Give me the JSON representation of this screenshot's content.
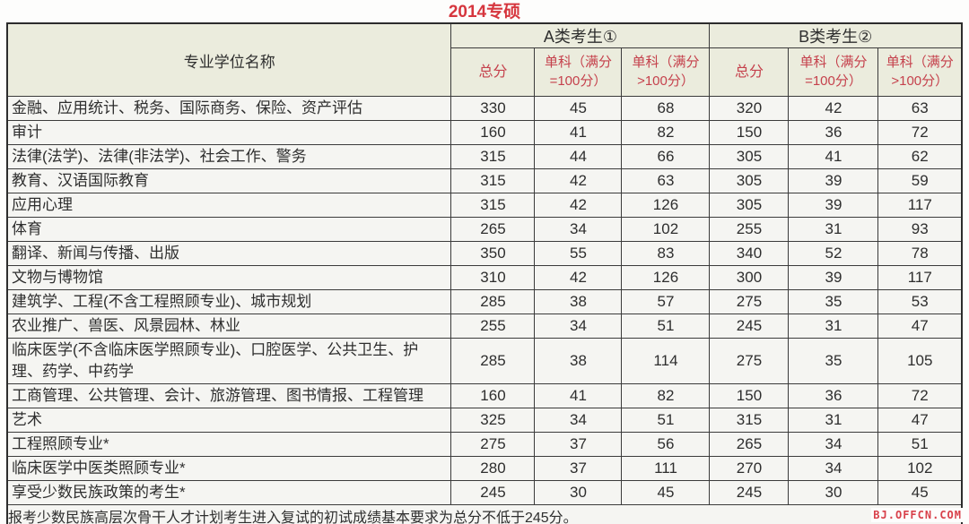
{
  "title": "2014专硕",
  "watermark": "BJ.OFFCN.COM",
  "colors": {
    "title_red": "#d6363e",
    "header_red": "#c5414c",
    "header_bg": "#ebecdd",
    "cell_bg": "#f5f5f2",
    "border": "#3b3b3b",
    "text": "#2e2e2e",
    "watermark_red": "#d8404a"
  },
  "table": {
    "col1_header": "专业学位名称",
    "group_a": "A类考生①",
    "group_b": "B类考生②",
    "sub_headers": [
      "总分",
      "单科（满分=100分）",
      "单科（满分>100分）"
    ],
    "rows": [
      {
        "name": "金融、应用统计、税务、国际商务、保险、资产评估",
        "a": [
          330,
          45,
          68
        ],
        "b": [
          320,
          42,
          63
        ]
      },
      {
        "name": "审计",
        "a": [
          160,
          41,
          82
        ],
        "b": [
          150,
          36,
          72
        ]
      },
      {
        "name": "法律(法学)、法律(非法学)、社会工作、警务",
        "a": [
          315,
          44,
          66
        ],
        "b": [
          305,
          41,
          62
        ]
      },
      {
        "name": "教育、汉语国际教育",
        "a": [
          315,
          42,
          63
        ],
        "b": [
          305,
          39,
          59
        ]
      },
      {
        "name": "应用心理",
        "a": [
          315,
          42,
          126
        ],
        "b": [
          305,
          39,
          117
        ]
      },
      {
        "name": "体育",
        "a": [
          265,
          34,
          102
        ],
        "b": [
          255,
          31,
          93
        ]
      },
      {
        "name": "翻译、新闻与传播、出版",
        "a": [
          350,
          55,
          83
        ],
        "b": [
          340,
          52,
          78
        ]
      },
      {
        "name": "文物与博物馆",
        "a": [
          310,
          42,
          126
        ],
        "b": [
          300,
          39,
          117
        ]
      },
      {
        "name": "建筑学、工程(不含工程照顾专业)、城市规划",
        "a": [
          285,
          38,
          57
        ],
        "b": [
          275,
          35,
          53
        ]
      },
      {
        "name": "农业推广、兽医、风景园林、林业",
        "a": [
          255,
          34,
          51
        ],
        "b": [
          245,
          31,
          47
        ]
      },
      {
        "name": "临床医学(不含临床医学照顾专业)、口腔医学、公共卫生、护理、药学、中药学",
        "a": [
          285,
          38,
          114
        ],
        "b": [
          275,
          35,
          105
        ]
      },
      {
        "name": "工商管理、公共管理、会计、旅游管理、图书情报、工程管理",
        "a": [
          160,
          41,
          82
        ],
        "b": [
          150,
          36,
          72
        ]
      },
      {
        "name": "艺术",
        "a": [
          325,
          34,
          51
        ],
        "b": [
          315,
          31,
          47
        ]
      },
      {
        "name": "工程照顾专业*",
        "a": [
          275,
          37,
          56
        ],
        "b": [
          265,
          34,
          51
        ]
      },
      {
        "name": "临床医学中医类照顾专业*",
        "a": [
          280,
          37,
          111
        ],
        "b": [
          270,
          34,
          102
        ]
      },
      {
        "name": "享受少数民族政策的考生*",
        "a": [
          245,
          30,
          45
        ],
        "b": [
          245,
          30,
          45
        ]
      }
    ],
    "footnote": "报考少数民族高层次骨干人才计划考生进入复试的初试成绩基本要求为总分不低于245分。"
  }
}
